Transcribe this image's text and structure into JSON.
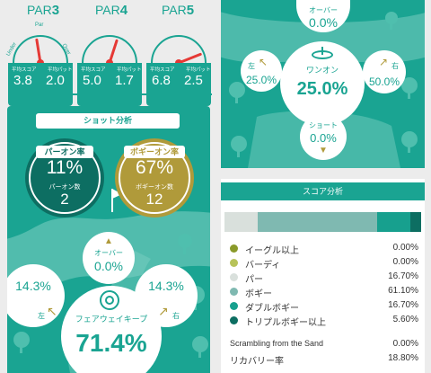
{
  "pars": [
    {
      "label": "PAR",
      "num": "3",
      "avg_score": "3.8",
      "avg_putt": "2.0",
      "needle_frac": 0.45
    },
    {
      "label": "PAR",
      "num": "4",
      "avg_score": "5.0",
      "avg_putt": "1.7",
      "needle_frac": 0.6
    },
    {
      "label": "PAR",
      "num": "5",
      "avg_score": "6.8",
      "avg_putt": "2.5",
      "needle_frac": 0.88
    }
  ],
  "gauge_labels": {
    "under": "Under",
    "par": "Par",
    "over": "Over",
    "avg_score": "平均スコア",
    "avg_putt": "平均パット"
  },
  "shot": {
    "title": "ショット分析",
    "par_on_label": "パーオン率",
    "par_on_value": "11%",
    "par_on_count_label": "パーオン数",
    "par_on_count": "2",
    "bogey_on_label": "ボギーオン率",
    "bogey_on_value": "67%",
    "bogey_on_count_label": "ボギーオン数",
    "bogey_on_count": "12",
    "over_label": "オーバー",
    "over_value": "0.0%",
    "left_label": "左",
    "left_value": "14.3%",
    "right_label": "右",
    "right_value": "14.3%",
    "fairway_label": "フェアウェイキープ",
    "fairway_value": "71.4%"
  },
  "green": {
    "over_label": "オーバー",
    "over_value": "0.0%",
    "left_label": "左",
    "left_value": "25.0%",
    "center_label": "ワンオン",
    "center_value": "25.0%",
    "right_label": "右",
    "right_value": "50.0%",
    "short_label": "ショート",
    "short_value": "0.0%"
  },
  "score": {
    "title": "スコア分析",
    "segments": [
      {
        "frac": 0.0,
        "color": "#8a9a2a"
      },
      {
        "frac": 0.0,
        "color": "#b7c35a"
      },
      {
        "frac": 0.167,
        "color": "#d9e0dc"
      },
      {
        "frac": 0.611,
        "color": "#7fb9b1"
      },
      {
        "frac": 0.167,
        "color": "#17a08e"
      },
      {
        "frac": 0.056,
        "color": "#0d6e62"
      }
    ],
    "rows": [
      {
        "name": "イーグル以上",
        "value": "0.00%",
        "color": "#8a9a2a"
      },
      {
        "name": "バーディ",
        "value": "0.00%",
        "color": "#b7c35a"
      },
      {
        "name": "パー",
        "value": "16.70%",
        "color": "#d9e0dc"
      },
      {
        "name": "ボギー",
        "value": "61.10%",
        "color": "#7fb9b1"
      },
      {
        "name": "ダブルボギー",
        "value": "16.70%",
        "color": "#17a08e"
      },
      {
        "name": "トリプルボギー以上",
        "value": "5.60%",
        "color": "#0d6e62"
      }
    ],
    "scrambling_label": "Scrambling from the Sand",
    "scrambling_value": "0.00%",
    "recovery_label": "リカバリー率",
    "recovery_value": "18.80%"
  }
}
